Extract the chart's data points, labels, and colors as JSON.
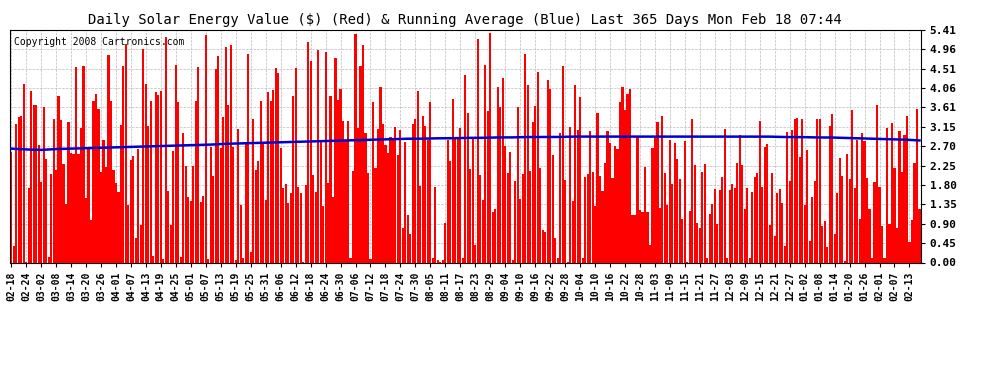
{
  "title": "Daily Solar Energy Value ($) (Red) & Running Average (Blue) Last 365 Days Mon Feb 18 07:44",
  "copyright": "Copyright 2008 Cartronics.com",
  "yticks": [
    0.0,
    0.45,
    0.9,
    1.35,
    1.8,
    2.25,
    2.7,
    3.15,
    3.61,
    4.06,
    4.51,
    4.96,
    5.41
  ],
  "ymax": 5.41,
  "bar_color": "#ff0000",
  "line_color": "#0000cc",
  "bg_color": "#ffffff",
  "grid_color": "#bbbbbb",
  "title_fontsize": 10,
  "x_labels": [
    "02-18",
    "02-24",
    "03-02",
    "03-08",
    "03-14",
    "03-20",
    "03-26",
    "04-01",
    "04-07",
    "04-13",
    "04-19",
    "04-25",
    "05-01",
    "05-07",
    "05-13",
    "05-19",
    "05-25",
    "05-31",
    "06-06",
    "06-12",
    "06-18",
    "06-24",
    "06-30",
    "07-06",
    "07-12",
    "07-18",
    "07-24",
    "07-30",
    "08-05",
    "08-11",
    "08-17",
    "08-23",
    "08-29",
    "09-04",
    "09-10",
    "09-16",
    "09-22",
    "09-28",
    "10-04",
    "10-10",
    "10-16",
    "10-22",
    "10-28",
    "11-03",
    "11-09",
    "11-15",
    "11-21",
    "11-27",
    "12-03",
    "12-09",
    "12-15",
    "12-21",
    "12-27",
    "01-02",
    "01-08",
    "01-14",
    "01-20",
    "01-26",
    "02-01",
    "02-07",
    "02-13"
  ],
  "running_avg_points": [
    2.65,
    2.63,
    2.62,
    2.64,
    2.65,
    2.66,
    2.67,
    2.68,
    2.69,
    2.7,
    2.71,
    2.72,
    2.73,
    2.74,
    2.76,
    2.77,
    2.78,
    2.79,
    2.8,
    2.81,
    2.82,
    2.83,
    2.84,
    2.85,
    2.86,
    2.87,
    2.88,
    2.88,
    2.89,
    2.89,
    2.9,
    2.9,
    2.91,
    2.91,
    2.92,
    2.92,
    2.92,
    2.93,
    2.93,
    2.93,
    2.93,
    2.93,
    2.93,
    2.93,
    2.93,
    2.93,
    2.93,
    2.93,
    2.93,
    2.93,
    2.93,
    2.92,
    2.92,
    2.91,
    2.91,
    2.9,
    2.89,
    2.88,
    2.87,
    2.86,
    2.84
  ]
}
